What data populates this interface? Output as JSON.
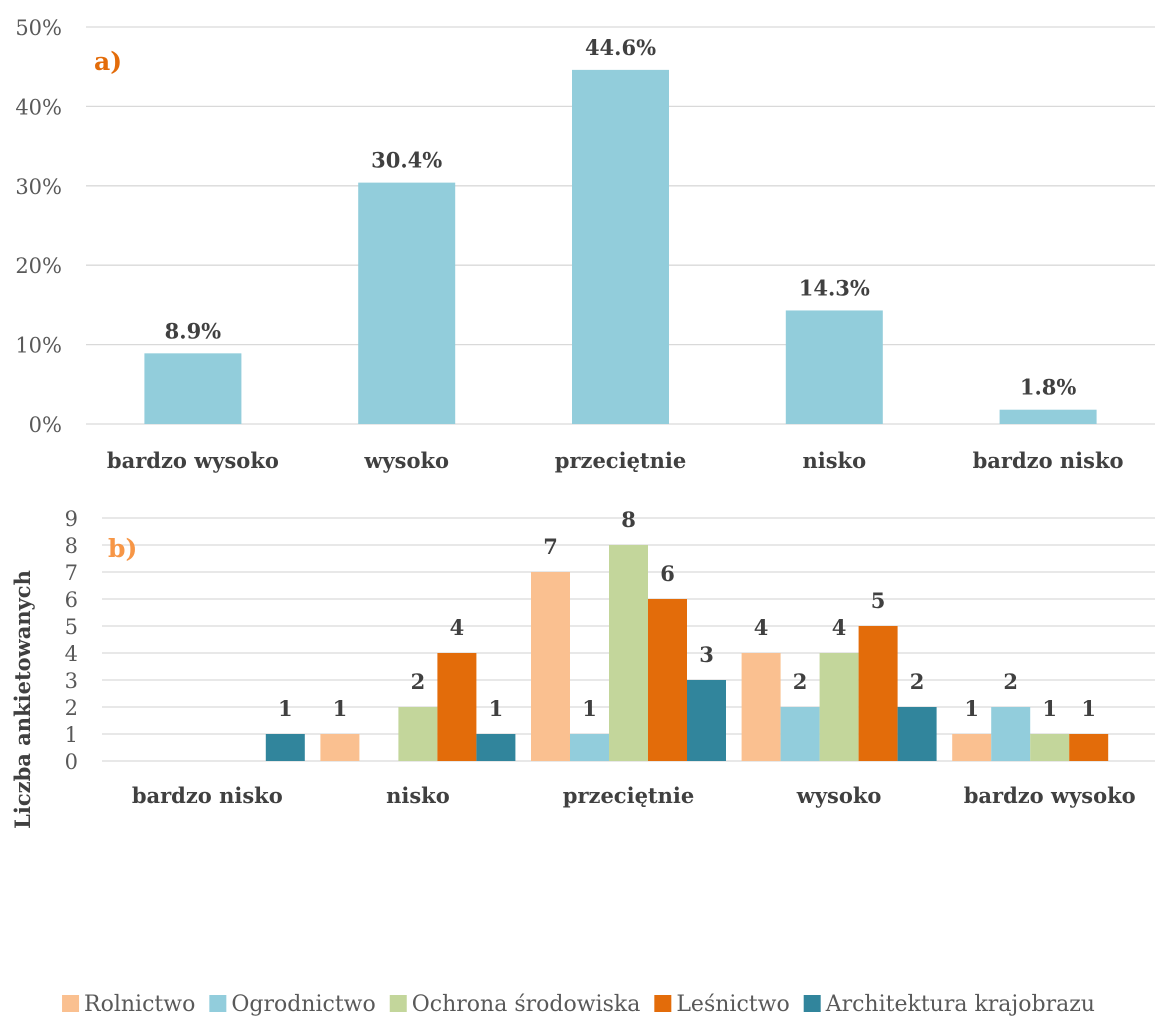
{
  "chart_data": [
    {
      "type": "bar",
      "panel_label": "a)",
      "categories": [
        "bardzo wysoko",
        "wysoko",
        "przeciętnie",
        "nisko",
        "bardzo nisko"
      ],
      "values": [
        8.9,
        30.4,
        44.6,
        14.3,
        1.8
      ],
      "value_labels": [
        "8.9%",
        "30.4%",
        "44.6%",
        "14.3%",
        "1.8%"
      ],
      "ylim": [
        0,
        50
      ],
      "yticks": [
        "0%",
        "10%",
        "20%",
        "30%",
        "40%",
        "50%"
      ],
      "grid": true,
      "colors": {
        "bar": "#92cddb",
        "panel_label": "#e36c0a"
      }
    },
    {
      "type": "bar",
      "panel_label": "b)",
      "ylabel": "Liczba ankietowanych",
      "categories": [
        "bardzo nisko",
        "nisko",
        "przeciętnie",
        "wysoko",
        "bardzo wysoko"
      ],
      "ylim": [
        0,
        9
      ],
      "yticks": [
        "0",
        "1",
        "2",
        "3",
        "4",
        "5",
        "6",
        "7",
        "8",
        "9"
      ],
      "grid": true,
      "legend_position": "bottom",
      "series": [
        {
          "name": "Rolnictwo",
          "color": "#fac090",
          "values": [
            0,
            1,
            7,
            4,
            1
          ]
        },
        {
          "name": "Ogrodnictwo",
          "color": "#92cddc",
          "values": [
            0,
            0,
            1,
            2,
            2
          ]
        },
        {
          "name": "Ochrona środowiska",
          "color": "#c3d69b",
          "values": [
            0,
            2,
            8,
            4,
            1
          ]
        },
        {
          "name": "Leśnictwo",
          "color": "#e36c0a",
          "values": [
            0,
            4,
            6,
            5,
            1
          ]
        },
        {
          "name": "Architektura krajobrazu",
          "color": "#31859c",
          "values": [
            1,
            1,
            3,
            2,
            0
          ]
        }
      ],
      "colors": {
        "panel_label": "#f79646"
      }
    }
  ]
}
